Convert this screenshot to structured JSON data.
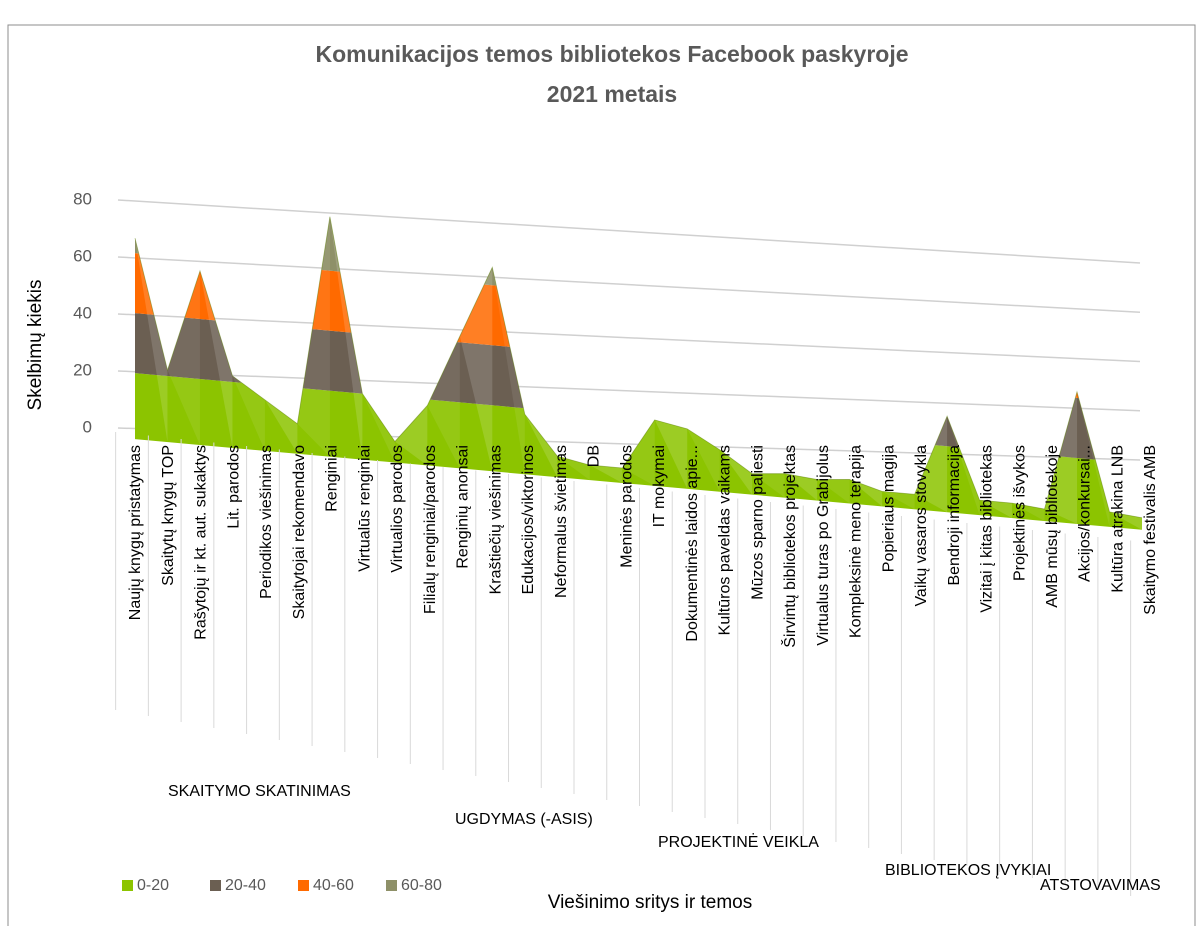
{
  "chart_data": {
    "type": "surface",
    "title": "Komunikacijos temos bibliotekos Facebook paskyroje",
    "subtitle": "2021 metais",
    "y_label": "Skelbimų kiekis",
    "x_label": "Viešinimo sritys ir temos",
    "categories": [
      "Naujų knygų pristatymas",
      "Skaitytų knygų TOP",
      "Rašytojų ir kt. aut. sukaktys",
      "Lit. parodos",
      "Periodikos viešinimas",
      "Skaitytojai rekomendavo",
      "Renginiai",
      "Virtualūs renginiai",
      "Virtualios parodos",
      "Filialų renginiai/parodos",
      "Renginių anonsai",
      "Kraštiečių viešinimas",
      "Edukacijos/viktorinos",
      "Neformalus švietimas",
      "DB",
      "Meninės parodos",
      "IT mokymai",
      "Dokumentinės laidos apie...",
      "Kultūros paveldas vaikams",
      "Mūzos sparno paliesti",
      "Širvintų bibliotekos projektas",
      "Virtualus turas po Grabijolus",
      "Kompleksinė meno terapija",
      "Popieriaus magija",
      "Vaikų vasaros stovykla",
      "Bendroji informacija",
      "Vizitai į kitas bibliotekas",
      "Projektinės išvykos",
      "AMB mūsų bibliotekoje",
      "Akcijos/konkursai...",
      "Kultūra atrakina LNB",
      "Skaitymo festivalis AMB"
    ],
    "values": [
      65,
      22,
      56,
      22,
      15,
      8,
      78,
      20,
      5,
      18,
      42,
      66,
      18,
      5,
      3,
      3,
      20,
      18,
      12,
      5,
      6,
      5,
      6,
      3,
      3,
      30,
      3,
      3,
      2,
      42,
      3,
      2
    ],
    "groups": [
      "SKAITYMO SKATINIMAS",
      "UGDYMAS (-ASIS)",
      "PROJEKTINĖ VEIKLA",
      "BIBLIOTEKOS ĮVYKIAI",
      "ATSTOVAVIMAS"
    ],
    "bands": [
      {
        "name": "0-20",
        "color": "#8cc400"
      },
      {
        "name": "20-40",
        "color": "#6b5f52"
      },
      {
        "name": "40-60",
        "color": "#ff6a00"
      },
      {
        "name": "60-80",
        "color": "#8e9068"
      }
    ],
    "ylim": [
      0,
      80
    ],
    "yticks": [
      0,
      20,
      40,
      60,
      80
    ],
    "grid": true
  }
}
